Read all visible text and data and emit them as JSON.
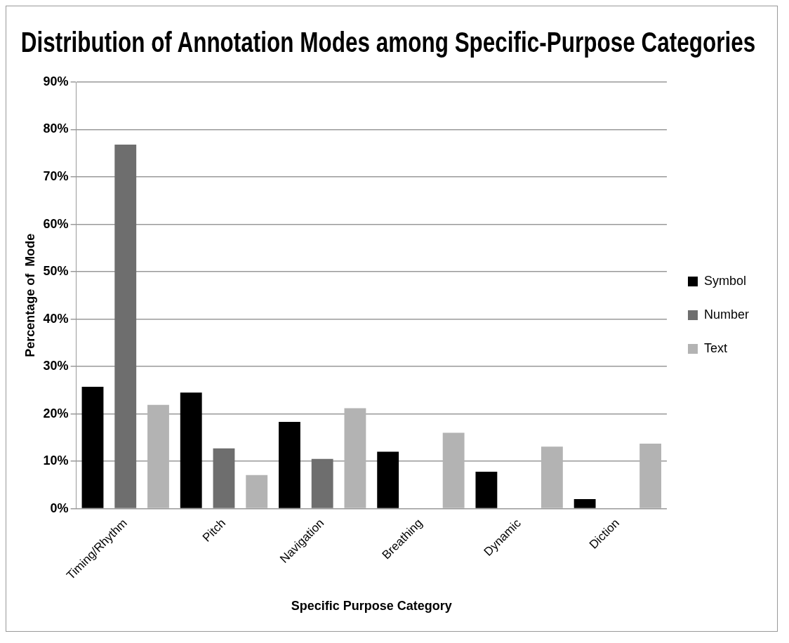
{
  "chart_data": {
    "type": "bar",
    "title": "Distribution of Annotation Modes among Specific-Purpose Categories",
    "xlabel": "Specific Purpose Category",
    "ylabel": "Percentage of  Mode",
    "categories": [
      "Timing/Rhythm",
      "Pitch",
      "Navigation",
      "Breathing",
      "Dynamic",
      "Diction"
    ],
    "series": [
      {
        "name": "Symbol",
        "color": "#000000",
        "values": [
          25.7,
          24.5,
          18.3,
          12.0,
          7.8,
          2.0
        ]
      },
      {
        "name": "Number",
        "color": "#6e6e6e",
        "values": [
          76.8,
          12.7,
          10.5,
          null,
          null,
          null
        ]
      },
      {
        "name": "Text",
        "color": "#b3b3b3",
        "values": [
          21.9,
          7.1,
          21.2,
          16.0,
          13.1,
          13.7
        ]
      }
    ],
    "ylim": [
      0,
      90
    ],
    "yticks": [
      {
        "value": 0,
        "label": "0%"
      },
      {
        "value": 10,
        "label": "10%"
      },
      {
        "value": 20,
        "label": "20%"
      },
      {
        "value": 30,
        "label": "30%"
      },
      {
        "value": 40,
        "label": "40%"
      },
      {
        "value": 50,
        "label": "50%"
      },
      {
        "value": 60,
        "label": "60%"
      },
      {
        "value": 70,
        "label": "70%"
      },
      {
        "value": 80,
        "label": "80%"
      },
      {
        "value": 90,
        "label": "90%"
      }
    ],
    "grid": "y",
    "legend": "right"
  }
}
